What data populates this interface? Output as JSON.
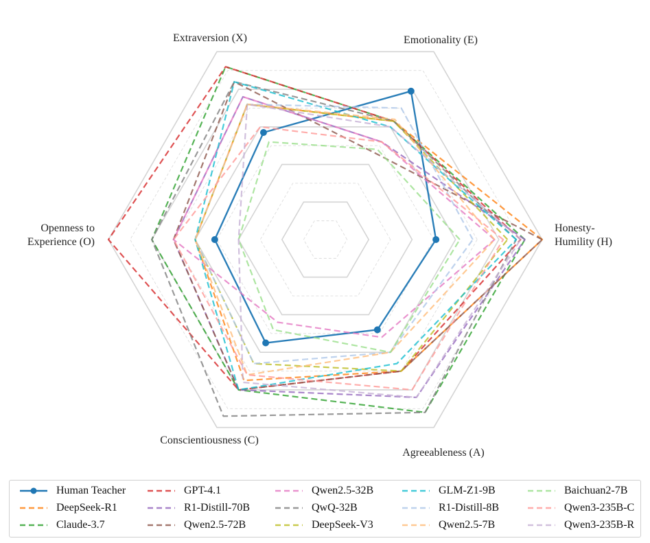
{
  "chart_data": {
    "type": "radar",
    "scale_max": 5,
    "grid": true,
    "legend_position": "bottom",
    "axes": [
      {
        "key": "H",
        "label": "Honesty-\nHumility (H)"
      },
      {
        "key": "E",
        "label": "Emotionality (E)"
      },
      {
        "key": "X",
        "label": "Extraversion (X)"
      },
      {
        "key": "O",
        "label": "Openness to\nExperience (O)"
      },
      {
        "key": "C",
        "label": "Conscientiousness (C)"
      },
      {
        "key": "A",
        "label": "Agreeableness (A)"
      }
    ],
    "series": [
      {
        "name": "Human Teacher",
        "color": "#1f77b4",
        "style": "solid",
        "markers": true,
        "values": [
          2.55,
          3.95,
          2.85,
          2.55,
          2.75,
          2.4
        ]
      },
      {
        "name": "DeepSeek-R1",
        "color": "#ff7f0e",
        "style": "dashed",
        "values": [
          5.0,
          3.15,
          3.6,
          3.0,
          3.75,
          3.5
        ]
      },
      {
        "name": "Claude-3.7",
        "color": "#2ca02c",
        "style": "dashed",
        "values": [
          4.6,
          3.15,
          4.6,
          4.0,
          4.0,
          4.6
        ]
      },
      {
        "name": "GPT-4.1",
        "color": "#d62728",
        "style": "dashed",
        "values": [
          4.5,
          3.15,
          4.6,
          5.0,
          4.0,
          3.5
        ]
      },
      {
        "name": "R1-Distill-70B",
        "color": "#9467bd",
        "style": "dashed",
        "values": [
          4.6,
          2.6,
          3.8,
          3.5,
          4.0,
          4.2
        ]
      },
      {
        "name": "Qwen2.5-72B",
        "color": "#8c564b",
        "style": "dashed",
        "values": [
          5.0,
          2.3,
          4.2,
          3.5,
          4.0,
          3.5
        ]
      },
      {
        "name": "Qwen2.5-32B",
        "color": "#e377c2",
        "style": "dashed",
        "values": [
          3.9,
          2.6,
          3.8,
          3.5,
          2.2,
          2.6
        ]
      },
      {
        "name": "QwQ-32B",
        "color": "#7f7f7f",
        "style": "dashed",
        "values": [
          4.4,
          3.15,
          4.2,
          4.0,
          4.7,
          4.6
        ]
      },
      {
        "name": "DeepSeek-V3",
        "color": "#bcbd22",
        "style": "dashed",
        "values": [
          4.2,
          3.15,
          3.6,
          3.0,
          3.3,
          3.5
        ]
      },
      {
        "name": "GLM-Z1-9B",
        "color": "#17becf",
        "style": "dashed",
        "values": [
          4.4,
          3.0,
          4.2,
          3.0,
          4.0,
          3.3
        ]
      },
      {
        "name": "R1-Distill-8B",
        "color": "#aec7e8",
        "style": "dashed",
        "values": [
          3.4,
          3.5,
          3.6,
          3.0,
          3.3,
          3.0
        ]
      },
      {
        "name": "Qwen2.5-7B",
        "color": "#ffbb78",
        "style": "dashed",
        "values": [
          3.9,
          3.2,
          3.6,
          3.0,
          3.6,
          3.0
        ]
      },
      {
        "name": "Baichuan2-7B",
        "color": "#98df8a",
        "style": "dashed",
        "values": [
          3.1,
          2.4,
          2.6,
          2.0,
          2.4,
          3.0
        ]
      },
      {
        "name": "Qwen3-235B-C",
        "color": "#ff9896",
        "style": "dashed",
        "values": [
          4.1,
          2.6,
          3.0,
          3.5,
          3.6,
          4.0
        ]
      },
      {
        "name": "Qwen3-235B-R",
        "color": "#c5b0d5",
        "style": "dashed",
        "values": [
          4.5,
          3.0,
          3.6,
          2.0,
          3.8,
          4.2
        ]
      }
    ]
  },
  "legend": {
    "columns": 5,
    "rows": 3
  }
}
